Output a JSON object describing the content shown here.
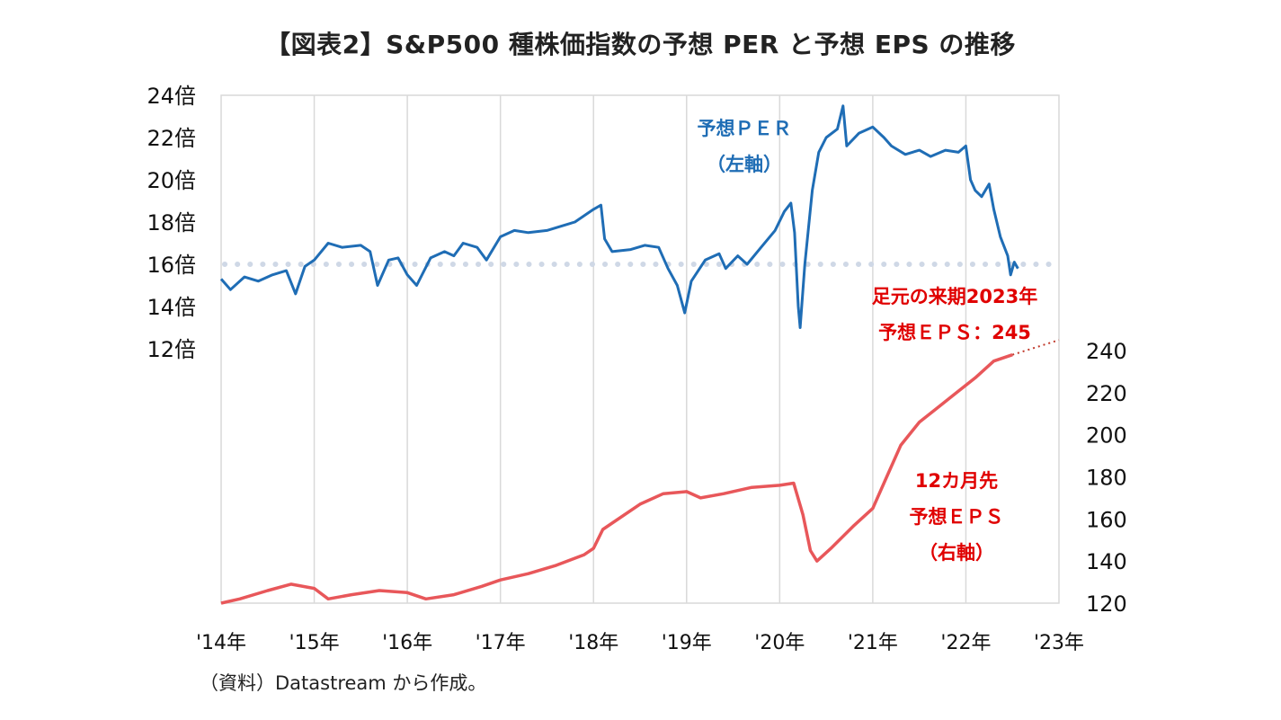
{
  "title": "【図表2】S&P500 種株価指数の予想 PER と予想 EPS の推移",
  "source": "（資料）Datastream から作成。",
  "chart_data": {
    "type": "line",
    "x_ticks": [
      "'14年",
      "'15年",
      "'16年",
      "'17年",
      "'18年",
      "'19年",
      "'20年",
      "'21年",
      "'22年",
      "'23年"
    ],
    "x_range": [
      2014,
      2023
    ],
    "left_axis": {
      "ticks": [
        "12倍",
        "14倍",
        "16倍",
        "18倍",
        "20倍",
        "22倍",
        "24倍"
      ],
      "range": [
        12,
        24
      ],
      "reference_line": 16
    },
    "right_axis": {
      "ticks": [
        "120",
        "140",
        "160",
        "180",
        "200",
        "220",
        "240"
      ],
      "range": [
        120,
        240
      ]
    },
    "grid": "vertical",
    "series": [
      {
        "axis": "left",
        "color": "#1f6db5",
        "label_lines": [
          "予想ＰＥＲ",
          "（左軸）"
        ],
        "points": [
          [
            2014.0,
            15.3
          ],
          [
            2014.1,
            14.8
          ],
          [
            2014.25,
            15.4
          ],
          [
            2014.4,
            15.2
          ],
          [
            2014.55,
            15.5
          ],
          [
            2014.7,
            15.7
          ],
          [
            2014.8,
            14.6
          ],
          [
            2014.9,
            15.9
          ],
          [
            2015.0,
            16.2
          ],
          [
            2015.15,
            17.0
          ],
          [
            2015.3,
            16.8
          ],
          [
            2015.5,
            16.9
          ],
          [
            2015.6,
            16.6
          ],
          [
            2015.68,
            15.0
          ],
          [
            2015.8,
            16.2
          ],
          [
            2015.9,
            16.3
          ],
          [
            2016.0,
            15.5
          ],
          [
            2016.1,
            15.0
          ],
          [
            2016.25,
            16.3
          ],
          [
            2016.4,
            16.6
          ],
          [
            2016.5,
            16.4
          ],
          [
            2016.6,
            17.0
          ],
          [
            2016.75,
            16.8
          ],
          [
            2016.85,
            16.2
          ],
          [
            2017.0,
            17.3
          ],
          [
            2017.15,
            17.6
          ],
          [
            2017.3,
            17.5
          ],
          [
            2017.5,
            17.6
          ],
          [
            2017.65,
            17.8
          ],
          [
            2017.8,
            18.0
          ],
          [
            2018.0,
            18.6
          ],
          [
            2018.08,
            18.8
          ],
          [
            2018.12,
            17.2
          ],
          [
            2018.2,
            16.6
          ],
          [
            2018.4,
            16.7
          ],
          [
            2018.55,
            16.9
          ],
          [
            2018.7,
            16.8
          ],
          [
            2018.8,
            15.8
          ],
          [
            2018.9,
            15.0
          ],
          [
            2018.98,
            13.7
          ],
          [
            2019.05,
            15.2
          ],
          [
            2019.2,
            16.2
          ],
          [
            2019.35,
            16.5
          ],
          [
            2019.42,
            15.8
          ],
          [
            2019.55,
            16.4
          ],
          [
            2019.65,
            16.0
          ],
          [
            2019.8,
            16.8
          ],
          [
            2019.95,
            17.6
          ],
          [
            2020.05,
            18.5
          ],
          [
            2020.12,
            18.9
          ],
          [
            2020.16,
            17.5
          ],
          [
            2020.2,
            14.0
          ],
          [
            2020.22,
            13.0
          ],
          [
            2020.27,
            16.0
          ],
          [
            2020.35,
            19.5
          ],
          [
            2020.42,
            21.3
          ],
          [
            2020.5,
            22.0
          ],
          [
            2020.62,
            22.4
          ],
          [
            2020.68,
            23.5
          ],
          [
            2020.72,
            21.6
          ],
          [
            2020.85,
            22.2
          ],
          [
            2021.0,
            22.5
          ],
          [
            2021.12,
            22.0
          ],
          [
            2021.2,
            21.6
          ],
          [
            2021.35,
            21.2
          ],
          [
            2021.5,
            21.4
          ],
          [
            2021.62,
            21.1
          ],
          [
            2021.78,
            21.4
          ],
          [
            2021.92,
            21.3
          ],
          [
            2022.0,
            21.6
          ],
          [
            2022.05,
            20.0
          ],
          [
            2022.1,
            19.5
          ],
          [
            2022.17,
            19.2
          ],
          [
            2022.25,
            19.8
          ],
          [
            2022.3,
            18.6
          ],
          [
            2022.37,
            17.3
          ],
          [
            2022.45,
            16.4
          ],
          [
            2022.48,
            15.5
          ],
          [
            2022.52,
            16.1
          ],
          [
            2022.56,
            15.8
          ]
        ]
      },
      {
        "axis": "right",
        "color": "#e8575a",
        "label_lines": [
          "12カ月先",
          "予想ＥＰＳ",
          "（右軸）"
        ],
        "points": [
          [
            2014.0,
            120
          ],
          [
            2014.2,
            122
          ],
          [
            2014.5,
            126
          ],
          [
            2014.75,
            129
          ],
          [
            2015.0,
            127
          ],
          [
            2015.15,
            122
          ],
          [
            2015.4,
            124
          ],
          [
            2015.7,
            126
          ],
          [
            2016.0,
            125
          ],
          [
            2016.2,
            122
          ],
          [
            2016.5,
            124
          ],
          [
            2016.8,
            128
          ],
          [
            2017.0,
            131
          ],
          [
            2017.3,
            134
          ],
          [
            2017.6,
            138
          ],
          [
            2017.9,
            143
          ],
          [
            2018.0,
            146
          ],
          [
            2018.1,
            155
          ],
          [
            2018.2,
            158
          ],
          [
            2018.5,
            167
          ],
          [
            2018.75,
            172
          ],
          [
            2019.0,
            173
          ],
          [
            2019.15,
            170
          ],
          [
            2019.4,
            172
          ],
          [
            2019.7,
            175
          ],
          [
            2020.0,
            176
          ],
          [
            2020.15,
            177
          ],
          [
            2020.25,
            162
          ],
          [
            2020.33,
            145
          ],
          [
            2020.4,
            140
          ],
          [
            2020.55,
            146
          ],
          [
            2020.8,
            157
          ],
          [
            2021.0,
            165
          ],
          [
            2021.15,
            180
          ],
          [
            2021.3,
            195
          ],
          [
            2021.5,
            206
          ],
          [
            2021.7,
            213
          ],
          [
            2021.9,
            220
          ],
          [
            2022.1,
            227
          ],
          [
            2022.3,
            235
          ],
          [
            2022.5,
            238
          ]
        ]
      }
    ],
    "projection": {
      "axis": "right",
      "color": "#c0392b",
      "from": [
        2022.5,
        238
      ],
      "to": [
        2023.0,
        245
      ]
    },
    "eps_note": {
      "lines": [
        "足元の来期2023年",
        "予想ＥＰＳ：245"
      ],
      "color": "#e00000"
    }
  }
}
